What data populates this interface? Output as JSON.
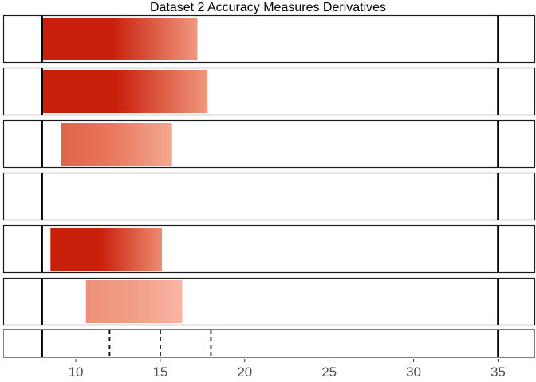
{
  "chart_data": {
    "type": "bar",
    "title": "Dataset 2 Accuracy Measures Derivatives",
    "xlabel": "",
    "ylabel": "",
    "xlim": [
      5.7,
      37.2
    ],
    "x_ticks": [
      10,
      15,
      20,
      25,
      30,
      35
    ],
    "x_tick_labels": [
      "10",
      "15",
      "20",
      "25",
      "30",
      "35"
    ],
    "grid": false,
    "reference_lines": {
      "solid": [
        8,
        35
      ],
      "dashed": [
        12,
        15,
        18
      ]
    },
    "panels": [
      {
        "bar": {
          "start": 8.0,
          "end": 17.2
        },
        "gradient": [
          "#c9200c",
          "#c9200c",
          "#f0987f"
        ]
      },
      {
        "bar": {
          "start": 8.0,
          "end": 17.8
        },
        "gradient": [
          "#c9200c",
          "#c9200c",
          "#f0987f"
        ]
      },
      {
        "bar": {
          "start": 9.1,
          "end": 15.7
        },
        "gradient": [
          "#e0634a",
          "#e8775c",
          "#f3a98f"
        ]
      },
      {
        "bar": null
      },
      {
        "bar": {
          "start": 8.5,
          "end": 15.1
        },
        "gradient": [
          "#c9200c",
          "#c9200c",
          "#ed8c72"
        ]
      },
      {
        "bar": {
          "start": 10.6,
          "end": 16.3
        },
        "gradient": [
          "#ef917a",
          "#f19c85",
          "#f8b5a3"
        ]
      },
      {
        "bar": null,
        "dashed": true
      }
    ]
  }
}
